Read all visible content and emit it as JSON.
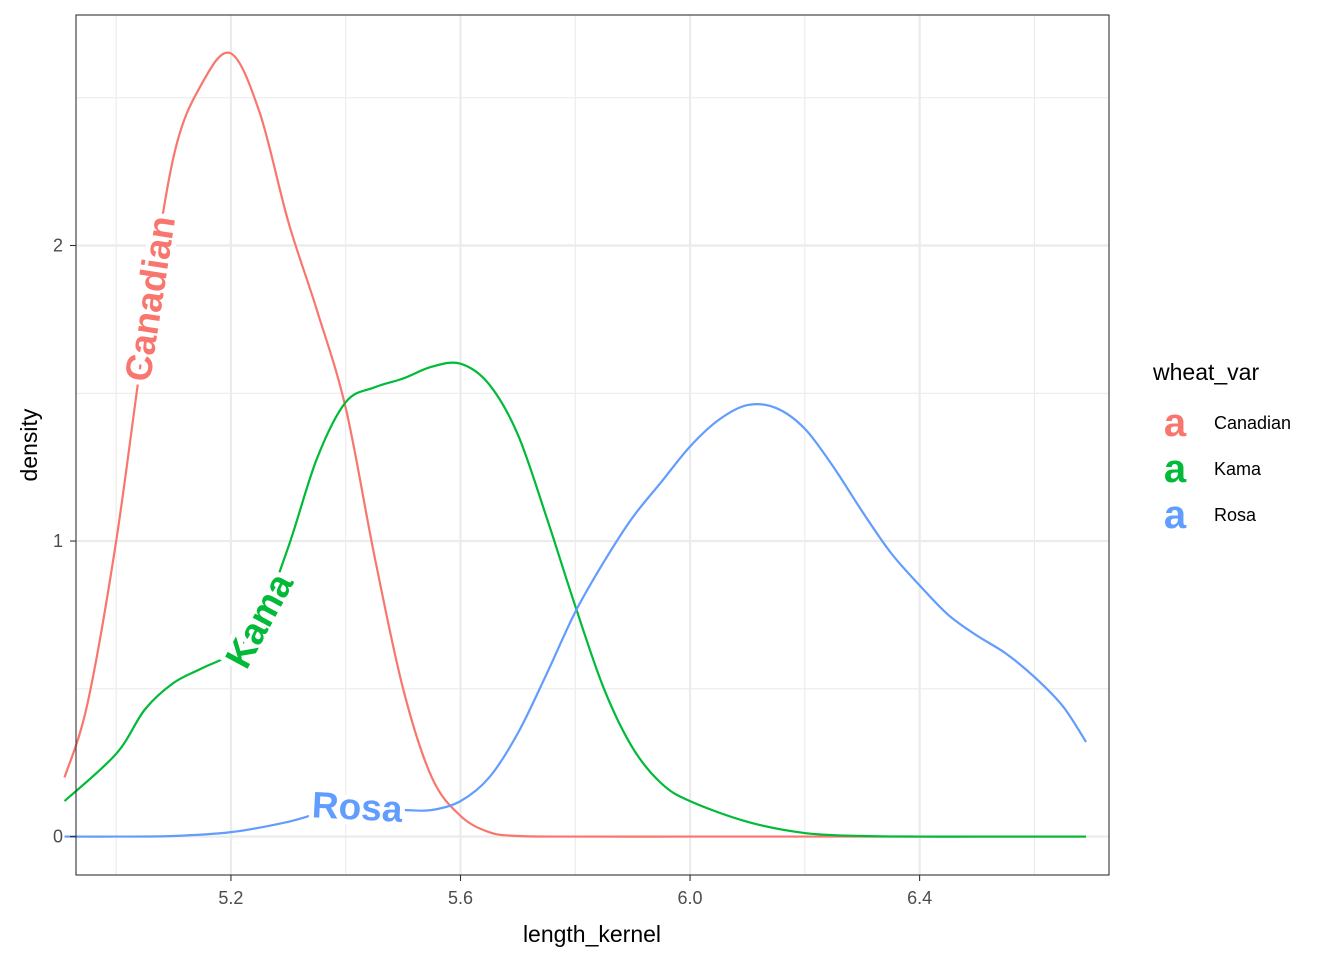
{
  "chart_data": {
    "type": "line",
    "xlabel": "length_kernel",
    "ylabel": "density",
    "xlim": [
      4.93,
      6.73
    ],
    "ylim": [
      -0.13,
      2.78
    ],
    "x_ticks": [
      5.2,
      5.6,
      6.0,
      6.4
    ],
    "x_tick_labels": [
      "5.2",
      "5.6",
      "6.0",
      "6.4"
    ],
    "y_ticks": [
      0,
      1,
      2
    ],
    "y_tick_labels": [
      "0",
      "1",
      "2"
    ],
    "x_minor_grid": [
      5.0,
      5.4,
      5.8,
      6.2,
      6.6
    ],
    "y_minor_grid": [
      0.5,
      1.5,
      2.5
    ],
    "grid": true,
    "legend": {
      "title": "wheat_var",
      "placement": "right",
      "key_glyph": "a",
      "entries": [
        "Canadian",
        "Kama",
        "Rosa"
      ]
    },
    "series": [
      {
        "name": "Canadian",
        "color": "#F8766D",
        "direct_label": "Canadian",
        "label_at_x": 5.06,
        "x": [
          4.91,
          4.95,
          5.0,
          5.05,
          5.1,
          5.15,
          5.2,
          5.25,
          5.3,
          5.35,
          5.4,
          5.45,
          5.5,
          5.55,
          5.6,
          5.65,
          5.7,
          5.8,
          6.0,
          6.2,
          6.4,
          6.6,
          6.69
        ],
        "values": [
          0.2,
          0.45,
          1.0,
          1.7,
          2.3,
          2.55,
          2.65,
          2.45,
          2.08,
          1.78,
          1.45,
          0.95,
          0.5,
          0.2,
          0.07,
          0.015,
          0.002,
          0.0,
          0.0,
          0.0,
          0.0,
          0.0,
          0.0
        ]
      },
      {
        "name": "Kama",
        "color": "#00BA38",
        "direct_label": "Kama",
        "label_at_x": 5.25,
        "x": [
          4.91,
          5.0,
          5.05,
          5.1,
          5.15,
          5.2,
          5.25,
          5.3,
          5.35,
          5.4,
          5.45,
          5.5,
          5.55,
          5.6,
          5.65,
          5.7,
          5.75,
          5.8,
          5.85,
          5.9,
          5.95,
          6.0,
          6.1,
          6.2,
          6.3,
          6.4,
          6.5,
          6.6,
          6.69
        ],
        "values": [
          0.12,
          0.28,
          0.43,
          0.52,
          0.57,
          0.62,
          0.73,
          0.98,
          1.28,
          1.47,
          1.52,
          1.55,
          1.59,
          1.6,
          1.53,
          1.36,
          1.08,
          0.78,
          0.5,
          0.3,
          0.18,
          0.12,
          0.05,
          0.012,
          0.002,
          0.0,
          0.0,
          0.0,
          0.0
        ]
      },
      {
        "name": "Rosa",
        "color": "#619CFF",
        "direct_label": "Rosa",
        "label_at_x": 5.42,
        "x": [
          4.91,
          5.0,
          5.1,
          5.2,
          5.3,
          5.4,
          5.5,
          5.55,
          5.6,
          5.65,
          5.7,
          5.75,
          5.8,
          5.85,
          5.9,
          5.95,
          6.0,
          6.05,
          6.1,
          6.15,
          6.2,
          6.25,
          6.3,
          6.35,
          6.4,
          6.45,
          6.5,
          6.55,
          6.6,
          6.65,
          6.69
        ],
        "values": [
          0.0,
          0.0,
          0.002,
          0.015,
          0.05,
          0.1,
          0.09,
          0.09,
          0.12,
          0.2,
          0.35,
          0.55,
          0.76,
          0.93,
          1.08,
          1.2,
          1.32,
          1.41,
          1.46,
          1.45,
          1.38,
          1.25,
          1.1,
          0.96,
          0.85,
          0.75,
          0.68,
          0.62,
          0.54,
          0.44,
          0.32
        ]
      }
    ]
  }
}
